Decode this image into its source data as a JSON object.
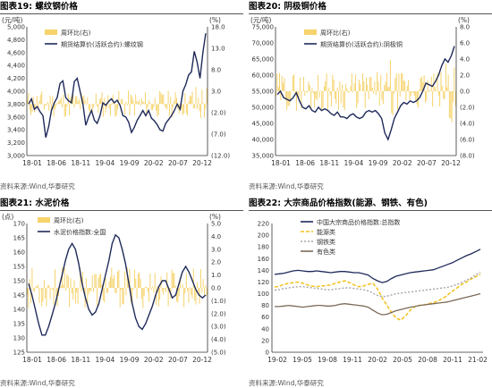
{
  "panels": [
    {
      "title": "图表19:  螺纹钢价格",
      "source": "资料来源:Wind,华泰研究"
    },
    {
      "title": "图表20:  阴极铜价格",
      "source": "资料来源:Wind,华泰研究"
    },
    {
      "title": "图表21:  水泥价格",
      "source": "资料来源:Wind,华泰研究"
    },
    {
      "title": "图表22:  大宗商品价格指数(能源、钢铁、有色)",
      "source": "资料来源:Wind,华泰研究"
    }
  ],
  "colors": {
    "bar": "#f6d36b",
    "line_dark": "#1f2a5a",
    "energy": "#f2c21b",
    "steel": "#a6a6a6",
    "nonferrous": "#7b6a58"
  },
  "chart_data": [
    {
      "type": "bar+line",
      "unit_left": "(元/吨)",
      "unit_right": "(%)",
      "ylim_left": [
        3000,
        5000
      ],
      "ylim_right": [
        -12,
        18
      ],
      "yticks_left": [
        "3,000",
        "3,200",
        "3,400",
        "3,600",
        "3,800",
        "4,000",
        "4,200",
        "4,400",
        "4,600",
        "4,800",
        "5,000"
      ],
      "yticks_right": [
        "(12.0)",
        "(7.0)",
        "(2.0)",
        "3.0",
        "8.0",
        "13.0",
        "18.0"
      ],
      "xticks": [
        "18-01",
        "18-06",
        "18-11",
        "19-04",
        "19-09",
        "20-02",
        "20-07",
        "20-12"
      ],
      "series": [
        {
          "name": "周环比(右)",
          "kind": "bar",
          "axis": "right"
        },
        {
          "name": "期货结算价(活跃合约):螺纹钢",
          "kind": "line",
          "axis": "left",
          "values": [
            3800,
            3880,
            3720,
            3760,
            3680,
            3620,
            3280,
            3450,
            3700,
            3820,
            3900,
            4120,
            4160,
            3900,
            3850,
            3820,
            4150,
            4200,
            4000,
            3800,
            3470,
            3600,
            3700,
            3550,
            3500,
            3620,
            3820,
            3780,
            3840,
            3880,
            3820,
            3860,
            3780,
            3620,
            3600,
            3520,
            3360,
            3440,
            3550,
            3620,
            3700,
            3620,
            3700,
            3580,
            3540,
            3480,
            3400,
            3380,
            3500,
            3560,
            3620,
            3700,
            3800,
            3720,
            4000,
            4100,
            4250,
            4300,
            4620,
            4450,
            4200,
            4600,
            4900
          ]
        }
      ]
    },
    {
      "type": "bar+line",
      "unit_left": "(元/吨)",
      "unit_right": "(%)",
      "ylim_left": [
        35000,
        75000
      ],
      "ylim_right": [
        -8,
        8
      ],
      "yticks_left": [
        "35,000",
        "40,000",
        "45,000",
        "50,000",
        "55,000",
        "60,000",
        "65,000",
        "70,000",
        "75,000"
      ],
      "yticks_right": [
        "(8.0)",
        "(6.0)",
        "(4.0)",
        "(2.0)",
        "0.0",
        "2.0",
        "4.0",
        "6.0",
        "8.0"
      ],
      "xticks": [
        "18-01",
        "18-06",
        "18-11",
        "19-04",
        "19-09",
        "20-02",
        "20-07",
        "20-12"
      ],
      "series": [
        {
          "name": "周环比(右)",
          "kind": "bar",
          "axis": "right"
        },
        {
          "name": "期货结算价(活跃合约):阴极铜",
          "kind": "line",
          "axis": "left",
          "values": [
            54000,
            55000,
            53000,
            52500,
            52000,
            53000,
            54500,
            52000,
            50000,
            49500,
            50500,
            49000,
            48500,
            50000,
            49000,
            49500,
            49000,
            48000,
            47500,
            48500,
            47000,
            47000,
            46500,
            47500,
            48000,
            47000,
            46500,
            47000,
            48500,
            49000,
            48500,
            49000,
            48000,
            46500,
            42000,
            40000,
            43000,
            46500,
            48500,
            50500,
            51500,
            51000,
            52000,
            51500,
            52000,
            53000,
            55000,
            57500,
            57000,
            56500,
            58000,
            60000,
            63000,
            65000,
            64000,
            66000,
            69000
          ]
        }
      ]
    },
    {
      "type": "bar+line",
      "unit_left": "(点)",
      "unit_right": "(%)",
      "ylim_left": [
        125,
        170
      ],
      "ylim_right": [
        -5,
        5
      ],
      "yticks_left": [
        "125",
        "130",
        "135",
        "140",
        "145",
        "150",
        "155",
        "160",
        "165",
        "170"
      ],
      "yticks_right": [
        "(5.0)",
        "(4.0)",
        "(3.0)",
        "(2.0)",
        "(1.0)",
        "0.0",
        "1.0",
        "2.0",
        "3.0",
        "4.0",
        "5.0"
      ],
      "xticks": [
        "18-01",
        "18-06",
        "18-11",
        "19-04",
        "19-09",
        "20-02",
        "20-07",
        "20-12"
      ],
      "series": [
        {
          "name": "周环比(右)",
          "kind": "bar",
          "axis": "right"
        },
        {
          "name": "水泥价格指数:全国",
          "kind": "line",
          "axis": "left",
          "values": [
            149,
            145,
            140,
            135,
            131,
            131,
            134,
            138,
            142,
            147,
            152,
            157,
            161,
            163,
            161,
            156,
            149,
            144,
            140,
            138,
            139,
            142,
            147,
            152,
            157,
            163,
            166,
            165,
            161,
            156,
            149,
            142,
            137,
            134,
            133,
            135,
            138,
            141,
            145,
            148,
            150,
            150,
            147,
            144,
            145,
            149,
            153,
            155,
            153,
            150,
            147,
            145,
            144,
            145
          ]
        }
      ]
    },
    {
      "type": "line",
      "ylim": [
        0,
        220
      ],
      "yticks": [
        "0",
        "20",
        "40",
        "60",
        "80",
        "100",
        "120",
        "140",
        "160",
        "180",
        "200",
        "220"
      ],
      "xticks": [
        "19-02",
        "19-05",
        "19-08",
        "19-11",
        "20-02",
        "20-05",
        "20-08",
        "20-11",
        "21-02"
      ],
      "series": [
        {
          "name": "中国大宗商品价格指数:总指数",
          "style": "solid",
          "values": [
            133,
            134,
            135,
            137,
            139,
            140,
            139,
            138,
            138,
            139,
            138,
            137,
            136,
            137,
            138,
            138,
            137,
            136,
            136,
            134,
            132,
            126,
            122,
            119,
            121,
            126,
            130,
            132,
            134,
            136,
            137,
            138,
            139,
            140,
            141,
            144,
            147,
            150,
            153,
            157,
            161,
            165,
            168,
            172,
            176
          ]
        },
        {
          "name": "能源类",
          "style": "dashed",
          "values": [
            111,
            113,
            116,
            118,
            119,
            120,
            118,
            115,
            113,
            112,
            113,
            114,
            115,
            118,
            120,
            122,
            119,
            115,
            112,
            113,
            116,
            118,
            108,
            93,
            80,
            68,
            58,
            55,
            62,
            72,
            78,
            80,
            81,
            83,
            85,
            88,
            92,
            98,
            104,
            110,
            116,
            120,
            125,
            129,
            133
          ]
        },
        {
          "name": "钢铁类",
          "style": "dotted",
          "values": [
            106,
            107,
            109,
            110,
            111,
            112,
            112,
            111,
            110,
            109,
            108,
            107,
            107,
            108,
            109,
            110,
            110,
            109,
            108,
            107,
            105,
            101,
            97,
            95,
            96,
            98,
            100,
            101,
            102,
            103,
            104,
            105,
            106,
            107,
            108,
            109,
            110,
            111,
            113,
            116,
            119,
            123,
            127,
            132,
            137
          ]
        },
        {
          "name": "有色类",
          "style": "solid",
          "values": [
            78,
            78,
            79,
            80,
            79,
            78,
            77,
            78,
            79,
            80,
            80,
            79,
            79,
            80,
            82,
            83,
            82,
            81,
            80,
            79,
            77,
            72,
            67,
            64,
            65,
            68,
            71,
            73,
            75,
            77,
            78,
            80,
            81,
            82,
            83,
            84,
            85,
            86,
            88,
            90,
            92,
            94,
            96,
            98,
            100
          ]
        }
      ]
    }
  ]
}
